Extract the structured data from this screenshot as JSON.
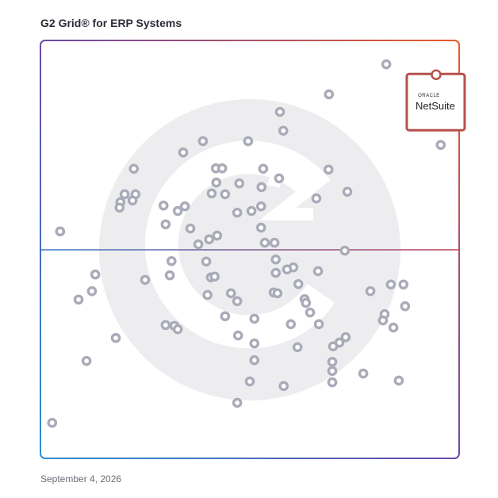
{
  "chart_data": {
    "type": "scatter",
    "title": "G2 Grid® for ERP Systems",
    "date": "September 4, 2026",
    "xlim": [
      0,
      100
    ],
    "ylim": [
      0,
      100
    ],
    "color": "#a9abb8",
    "x": [
      82.6,
      68.9,
      57.2,
      58.0,
      95.6,
      49.6,
      38.8,
      34.1,
      22.3,
      41.9,
      43.4,
      53.2,
      68.8,
      57.0,
      42.0,
      47.5,
      52.8,
      73.3,
      20.1,
      22.7,
      40.9,
      44.1,
      65.9,
      19.1,
      22.0,
      18.9,
      29.4,
      34.5,
      32.8,
      52.7,
      50.4,
      47.0,
      29.9,
      35.8,
      52.7,
      4.7,
      42.2,
      40.3,
      37.7,
      53.6,
      55.9,
      72.7,
      31.3,
      39.6,
      56.2,
      60.4,
      58.9,
      56.2,
      66.3,
      13.1,
      30.9,
      40.7,
      41.6,
      25.0,
      61.6,
      83.7,
      86.7,
      12.3,
      78.8,
      55.7,
      56.6,
      39.9,
      45.5,
      9.1,
      47.0,
      63.1,
      63.4,
      87.1,
      64.4,
      82.2,
      44.1,
      51.1,
      81.8,
      29.9,
      32.0,
      32.8,
      59.8,
      66.5,
      84.3,
      47.2,
      18.0,
      72.9,
      71.4,
      51.1,
      69.9,
      61.4,
      51.1,
      11.0,
      69.7,
      69.7,
      77.1,
      69.7,
      85.6,
      50.0,
      58.1,
      47.0,
      2.8
    ],
    "values": [
      94.3,
      87.1,
      82.9,
      78.4,
      75.0,
      75.9,
      75.9,
      73.2,
      69.3,
      69.4,
      69.4,
      69.3,
      69.1,
      67.0,
      66.0,
      65.8,
      64.9,
      63.8,
      63.2,
      63.2,
      63.4,
      63.2,
      62.2,
      61.3,
      61.7,
      60.0,
      60.5,
      60.3,
      59.2,
      60.3,
      59.2,
      58.8,
      56.0,
      55.0,
      55.2,
      54.3,
      53.3,
      52.4,
      51.2,
      51.6,
      51.6,
      49.7,
      47.2,
      47.1,
      47.6,
      45.7,
      45.2,
      44.4,
      44.8,
      44.0,
      43.8,
      43.3,
      43.5,
      42.7,
      41.7,
      41.6,
      41.6,
      40.0,
      40.0,
      39.7,
      39.5,
      39.1,
      39.5,
      38.0,
      37.6,
      38.1,
      37.2,
      36.4,
      34.9,
      34.5,
      34.0,
      33.4,
      33.0,
      31.9,
      31.7,
      30.9,
      32.1,
      32.1,
      31.3,
      29.4,
      28.8,
      29.0,
      27.7,
      27.5,
      26.8,
      26.6,
      23.5,
      23.3,
      23.1,
      20.9,
      20.3,
      18.2,
      18.6,
      18.4,
      17.3,
      13.3,
      8.5
    ],
    "highlight": {
      "brand": "ORACLE",
      "name": "NetSuite",
      "x": 94.5,
      "value": 91.8,
      "color": "#b5514c"
    }
  }
}
